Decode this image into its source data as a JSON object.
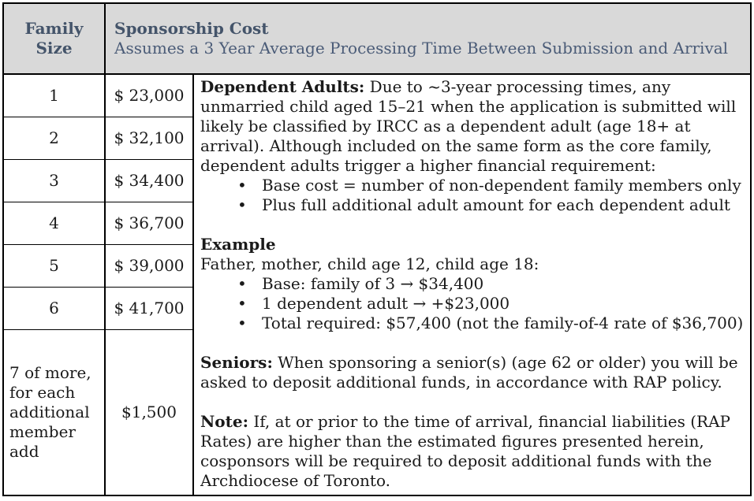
{
  "header": {
    "family_size_label": "Family Size",
    "cost_title": "Sponsorship Cost",
    "cost_subtitle": "Assumes a 3 Year Average Processing Time Between Submission and Arrival",
    "header_bg": "#d9d9d9",
    "header_text_color": "#44546a"
  },
  "rates": {
    "rows": [
      {
        "size": "1",
        "cost": "$ 23,000"
      },
      {
        "size": "2",
        "cost": "$ 32,100"
      },
      {
        "size": "3",
        "cost": "$ 34,400"
      },
      {
        "size": "4",
        "cost": "$ 36,700"
      },
      {
        "size": "5",
        "cost": "$ 39,000"
      },
      {
        "size": "6",
        "cost": "$ 41,700"
      },
      {
        "size": "7 of more, for each additional member add",
        "cost": "$1,500"
      }
    ]
  },
  "notes": {
    "dependent_adults_label": "Dependent Adults:",
    "dependent_adults_text": " Due to ~3-year processing times, any unmarried child aged 15–21 when the application is submitted will likely be classified by IRCC as a dependent adult (age 18+ at arrival). Although included on the same form as the core family, dependent adults trigger a higher financial requirement:",
    "dependent_bullets": [
      "Base cost = number of non-dependent family members only",
      "Plus full additional adult amount for each dependent adult"
    ],
    "example_title": "Example",
    "example_intro": "Father, mother, child age 12, child age 18:",
    "example_bullets": [
      "Base: family of 3 → $34,400",
      "1 dependent adult → +$23,000",
      "Total required: $57,400 (not the family-of-4 rate of $36,700)"
    ],
    "seniors_label": "Seniors:",
    "seniors_text": " When sponsoring a senior(s) (age 62 or older) you will be asked to deposit additional funds, in accordance with RAP policy.",
    "note_label": "Note:",
    "note_text": " If, at or prior to the time of arrival, financial liabilities (RAP Rates) are higher than the estimated figures presented herein, cosponsors will be required to deposit additional funds with the Archdiocese of Toronto."
  }
}
